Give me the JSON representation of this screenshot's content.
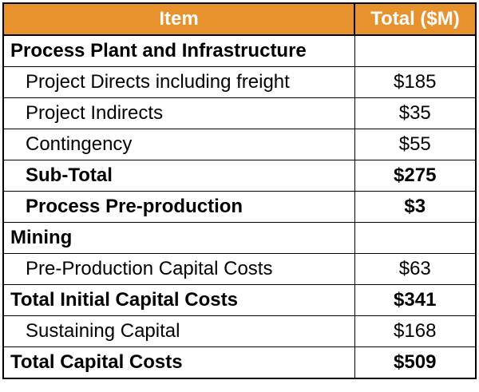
{
  "table": {
    "header": {
      "item": "Item",
      "total": "Total ($M)"
    },
    "rows": [
      {
        "label": "Process Plant and Infrastructure",
        "value": "",
        "bold": true,
        "indent": false
      },
      {
        "label": "Project Directs including freight",
        "value": "$185",
        "bold": false,
        "indent": true
      },
      {
        "label": "Project Indirects",
        "value": "$35",
        "bold": false,
        "indent": true
      },
      {
        "label": "Contingency",
        "value": "$55",
        "bold": false,
        "indent": true
      },
      {
        "label": "Sub-Total",
        "value": "$275",
        "bold": true,
        "indent": true
      },
      {
        "label": "Process Pre-production",
        "value": "$3",
        "bold": true,
        "indent": true
      },
      {
        "label": "Mining",
        "value": "",
        "bold": true,
        "indent": false
      },
      {
        "label": "Pre-Production Capital Costs",
        "value": "$63",
        "bold": false,
        "indent": true
      },
      {
        "label": "Total Initial Capital Costs",
        "value": "$341",
        "bold": true,
        "indent": false
      },
      {
        "label": "Sustaining Capital",
        "value": "$168",
        "bold": false,
        "indent": true
      },
      {
        "label": "Total Capital Costs",
        "value": "$509",
        "bold": true,
        "indent": false
      }
    ]
  },
  "colors": {
    "header_bg": "#e8922e",
    "header_text": "#ffffff",
    "border": "#000000"
  }
}
